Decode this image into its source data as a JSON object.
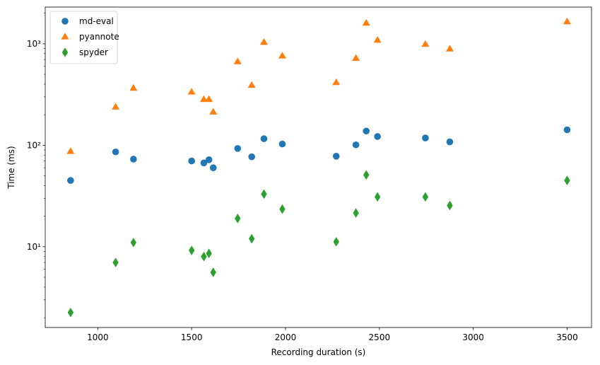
{
  "chart_data": {
    "type": "scatter",
    "title": "",
    "xlabel": "Recording duration (s)",
    "ylabel": "Time (ms)",
    "xlim": [
      720,
      3630
    ],
    "ylim": [
      1.6,
      2300
    ],
    "yscale": "log",
    "grid": false,
    "legend_position": "top-left",
    "x_ticks": [
      1000,
      1500,
      2000,
      2500,
      3000,
      3500
    ],
    "x_tick_labels": [
      "1000",
      "1500",
      "2000",
      "2500",
      "3000",
      "3500"
    ],
    "y_ticks": [
      10,
      100,
      1000
    ],
    "y_tick_labels": [
      "10¹",
      "10²",
      "10³"
    ],
    "series": [
      {
        "name": "md-eval",
        "marker": "circle",
        "color": "#1f77b4",
        "points": [
          {
            "x": 855,
            "y": 45
          },
          {
            "x": 1095,
            "y": 86
          },
          {
            "x": 1190,
            "y": 73
          },
          {
            "x": 1500,
            "y": 70
          },
          {
            "x": 1565,
            "y": 67
          },
          {
            "x": 1592,
            "y": 72
          },
          {
            "x": 1615,
            "y": 60
          },
          {
            "x": 1745,
            "y": 93
          },
          {
            "x": 1820,
            "y": 77
          },
          {
            "x": 1885,
            "y": 116
          },
          {
            "x": 1983,
            "y": 103
          },
          {
            "x": 2270,
            "y": 78
          },
          {
            "x": 2375,
            "y": 101
          },
          {
            "x": 2430,
            "y": 138
          },
          {
            "x": 2490,
            "y": 122
          },
          {
            "x": 2745,
            "y": 118
          },
          {
            "x": 2875,
            "y": 108
          },
          {
            "x": 3500,
            "y": 142
          }
        ]
      },
      {
        "name": "pyannote",
        "marker": "triangle",
        "color": "#ff7f0e",
        "points": [
          {
            "x": 855,
            "y": 87
          },
          {
            "x": 1095,
            "y": 238
          },
          {
            "x": 1190,
            "y": 365
          },
          {
            "x": 1500,
            "y": 335
          },
          {
            "x": 1565,
            "y": 283
          },
          {
            "x": 1592,
            "y": 283
          },
          {
            "x": 1615,
            "y": 213
          },
          {
            "x": 1745,
            "y": 667
          },
          {
            "x": 1820,
            "y": 390
          },
          {
            "x": 1885,
            "y": 1035
          },
          {
            "x": 1983,
            "y": 760
          },
          {
            "x": 2270,
            "y": 415
          },
          {
            "x": 2375,
            "y": 720
          },
          {
            "x": 2430,
            "y": 1600
          },
          {
            "x": 2490,
            "y": 1085
          },
          {
            "x": 2745,
            "y": 990
          },
          {
            "x": 2875,
            "y": 890
          },
          {
            "x": 3500,
            "y": 1650
          }
        ]
      },
      {
        "name": "spyder",
        "marker": "thin_diamond",
        "color": "#2ca02c",
        "points": [
          {
            "x": 855,
            "y": 2.25
          },
          {
            "x": 1095,
            "y": 7.0
          },
          {
            "x": 1190,
            "y": 11.0
          },
          {
            "x": 1500,
            "y": 9.2
          },
          {
            "x": 1565,
            "y": 8.0
          },
          {
            "x": 1592,
            "y": 8.6
          },
          {
            "x": 1615,
            "y": 5.6
          },
          {
            "x": 1745,
            "y": 19
          },
          {
            "x": 1820,
            "y": 12
          },
          {
            "x": 1885,
            "y": 33
          },
          {
            "x": 1983,
            "y": 23.5
          },
          {
            "x": 2270,
            "y": 11.2
          },
          {
            "x": 2375,
            "y": 21.5
          },
          {
            "x": 2430,
            "y": 51
          },
          {
            "x": 2490,
            "y": 31
          },
          {
            "x": 2745,
            "y": 31
          },
          {
            "x": 2875,
            "y": 25.5
          },
          {
            "x": 3500,
            "y": 45
          }
        ]
      }
    ]
  }
}
